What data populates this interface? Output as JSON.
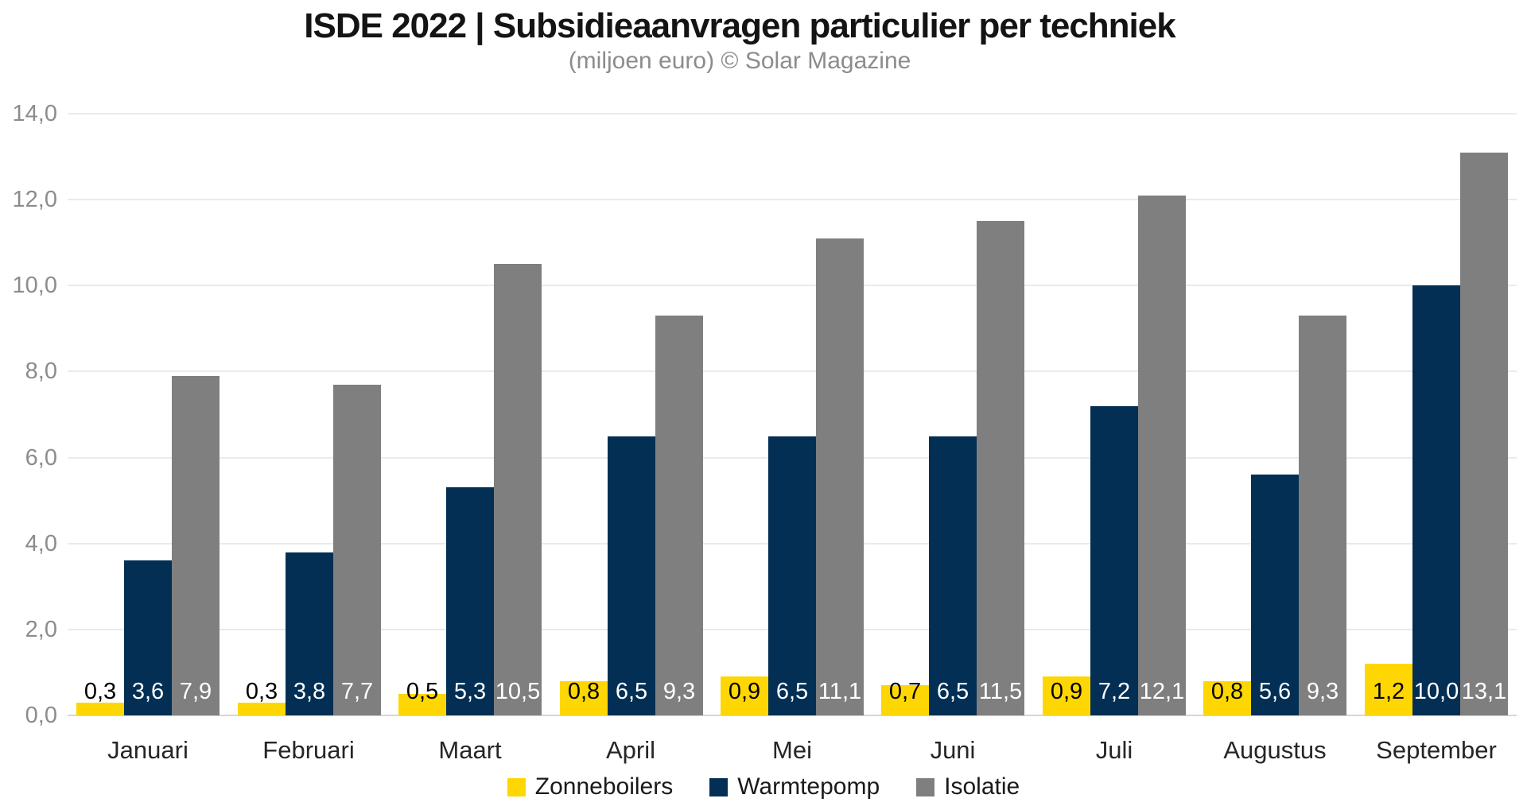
{
  "header": {
    "title": "ISDE 2022 | Subsidieaanvragen particulier per techniek",
    "subtitle": "(miljoen euro) © Solar Magazine"
  },
  "chart_data": {
    "type": "bar",
    "title": "ISDE 2022 | Subsidieaanvragen particulier per techniek",
    "subtitle": "(miljoen euro) © Solar Magazine",
    "unit": "miljoen euro",
    "grid": true,
    "legend_position": "bottom",
    "categories": [
      "Januari",
      "Februari",
      "Maart",
      "April",
      "Mei",
      "Juni",
      "Juli",
      "Augustus",
      "September"
    ],
    "series": [
      {
        "name": "Zonneboilers",
        "color": "#fed702",
        "label_color": "#000000",
        "values": [
          0.3,
          0.3,
          0.5,
          0.8,
          0.9,
          0.7,
          0.9,
          0.8,
          1.2
        ],
        "labels": [
          "0,3",
          "0,3",
          "0,5",
          "0,8",
          "0,9",
          "0,7",
          "0,9",
          "0,8",
          "1,2"
        ]
      },
      {
        "name": "Warmtepomp",
        "color": "#032f54",
        "label_color": "#ffffff",
        "values": [
          3.6,
          3.8,
          5.3,
          6.5,
          6.5,
          6.5,
          7.2,
          5.6,
          10.0
        ],
        "labels": [
          "3,6",
          "3,8",
          "5,3",
          "6,5",
          "6,5",
          "6,5",
          "7,2",
          "5,6",
          "10,0"
        ]
      },
      {
        "name": "Isolatie",
        "color": "#7f7f7f",
        "label_color": "#ffffff",
        "values": [
          7.9,
          7.7,
          10.5,
          9.3,
          11.1,
          11.5,
          12.1,
          9.3,
          13.1
        ],
        "labels": [
          "7,9",
          "7,7",
          "10,5",
          "9,3",
          "11,1",
          "11,5",
          "12,1",
          "9,3",
          "13,1"
        ]
      }
    ],
    "yaxis": {
      "min": 0,
      "max": 14,
      "tick_step": 2,
      "tick_labels": [
        "0,0",
        "2,0",
        "4,0",
        "6,0",
        "8,0",
        "10,0",
        "12,0",
        "14,0"
      ]
    }
  }
}
